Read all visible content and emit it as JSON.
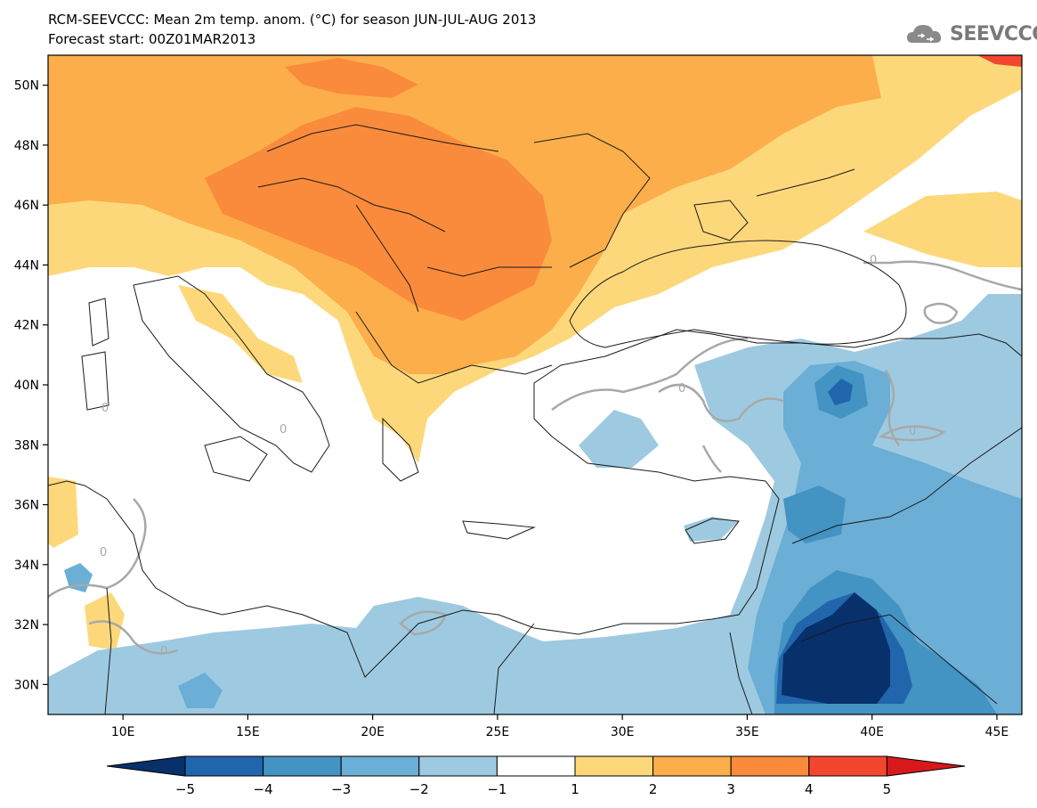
{
  "header": {
    "title_line1": "RCM-SEEVCCC: Mean 2m temp. anom. (°C) for season JUN-JUL-AUG 2013",
    "title_line2": "Forecast start: 00Z01MAR2013",
    "logo_text": "SEEVCCC"
  },
  "map": {
    "lon_range": [
      7,
      46
    ],
    "lat_range": [
      29,
      51
    ],
    "lon_ticks": [
      "10E",
      "15E",
      "20E",
      "25E",
      "30E",
      "35E",
      "40E",
      "45E"
    ],
    "lat_ticks": [
      "50N",
      "48N",
      "46N",
      "44N",
      "42N",
      "40N",
      "38N",
      "36N",
      "34N",
      "32N",
      "30N"
    ],
    "contour_label": "0"
  },
  "colorbar": {
    "labels": [
      "-5",
      "-4",
      "-3",
      "-2",
      "-1",
      "1",
      "2",
      "3",
      "4",
      "5"
    ],
    "colors": [
      "#08306b",
      "#2166ac",
      "#4393c3",
      "#6baed6",
      "#9ecae1",
      "#ffffff",
      "#fdd87b",
      "#fcae4b",
      "#fb8b3c",
      "#f2472e",
      "#d7191c"
    ]
  },
  "colors": {
    "land_border": "#1a1a1a",
    "zero_contour": "#a8a8a8"
  }
}
